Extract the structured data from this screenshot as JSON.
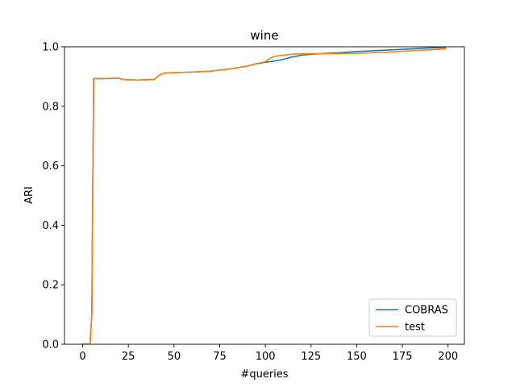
{
  "chart_data": {
    "type": "line",
    "title": "wine",
    "xlabel": "#queries",
    "ylabel": "ARI",
    "xlim": [
      -9.95,
      208.95
    ],
    "ylim": [
      0,
      1
    ],
    "xticks": [
      0,
      25,
      50,
      75,
      100,
      125,
      150,
      175,
      200
    ],
    "yticks": [
      0.0,
      0.2,
      0.4,
      0.6,
      0.8,
      1.0
    ],
    "xtick_labels": [
      "0",
      "25",
      "50",
      "75",
      "100",
      "125",
      "150",
      "175",
      "200"
    ],
    "ytick_labels": [
      "0.0",
      "0.2",
      "0.4",
      "0.6",
      "0.8",
      "1.0"
    ],
    "grid": false,
    "legend_position": "bottom-right",
    "series": [
      {
        "name": "COBRAS",
        "color": "#1f77b4",
        "x": [
          0,
          4,
          5,
          6,
          10,
          20,
          22,
          30,
          39,
          42,
          45,
          60,
          70,
          80,
          90,
          95,
          100,
          105,
          110,
          115,
          120,
          130,
          140,
          150,
          160,
          170,
          180,
          190,
          199
        ],
        "y": [
          0,
          0,
          0.1,
          0.893,
          0.893,
          0.894,
          0.89,
          0.888,
          0.89,
          0.905,
          0.912,
          0.915,
          0.918,
          0.925,
          0.935,
          0.943,
          0.948,
          0.952,
          0.958,
          0.966,
          0.972,
          0.977,
          0.98,
          0.984,
          0.987,
          0.99,
          0.993,
          0.996,
          0.998
        ]
      },
      {
        "name": "test",
        "color": "#ff7f0e",
        "x": [
          0,
          4,
          5,
          6,
          10,
          20,
          22,
          30,
          39,
          42,
          45,
          60,
          70,
          80,
          90,
          95,
          100,
          102,
          105,
          110,
          115,
          120,
          130,
          140,
          150,
          160,
          170,
          180,
          190,
          199
        ],
        "y": [
          0,
          0,
          0.1,
          0.893,
          0.893,
          0.894,
          0.89,
          0.888,
          0.89,
          0.905,
          0.912,
          0.915,
          0.918,
          0.925,
          0.935,
          0.943,
          0.95,
          0.96,
          0.968,
          0.972,
          0.975,
          0.976,
          0.977,
          0.977,
          0.978,
          0.98,
          0.983,
          0.987,
          0.99,
          0.993
        ]
      }
    ]
  }
}
